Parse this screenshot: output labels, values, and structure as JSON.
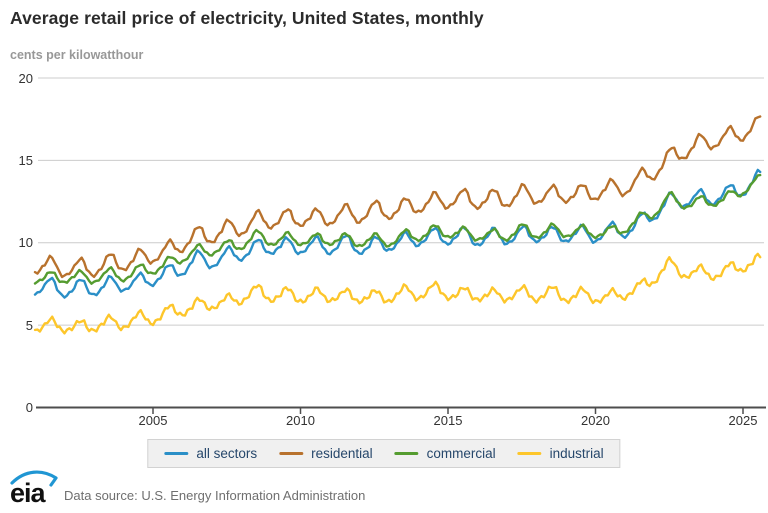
{
  "header": {
    "title": "Average retail price of electricity, United States, monthly",
    "subtitle": "cents per kilowatthour"
  },
  "footer": {
    "logo_text": "eia",
    "source": "Data source: U.S. Energy Information Administration"
  },
  "colors": {
    "title_text": "#2b2b2b",
    "subtitle_text": "#989898",
    "axis": "#4d4d4d",
    "grid": "#cccccc",
    "tick_label": "#333333",
    "legend_text": "#26476b",
    "legend_bg": "#f0f0f0",
    "source_text": "#6f6f6f",
    "eia_blue": "#2096d3"
  },
  "chart_data": {
    "type": "line",
    "title": "Average retail price of electricity, United States, monthly",
    "ylabel": "cents per kilowatthour",
    "frequency": "monthly",
    "x_start": "2001-01",
    "x_end": "2025-08",
    "ylim": [
      0,
      20
    ],
    "y_ticks": [
      0,
      5,
      10,
      15,
      20
    ],
    "x_ticks": [
      2005,
      2010,
      2015,
      2020,
      2025
    ],
    "grid": "horizontal",
    "legend_position": "bottom",
    "annual_start_year": 2001,
    "seasonal_offsets": [
      -0.9,
      -0.8,
      -0.55,
      -0.25,
      0.1,
      0.65,
      1.0,
      1.0,
      0.65,
      -0.05,
      -0.55,
      -0.85
    ],
    "series": [
      {
        "id": "all-sectors",
        "name": "all sectors",
        "color": "#2a8fc7",
        "seasonal_amplitude": 0.5,
        "noise_scale": 0.08,
        "start_value": 6.9,
        "end_value": 14.3,
        "annual_averages": [
          7.3,
          7.2,
          7.4,
          7.6,
          8.1,
          8.9,
          9.1,
          9.7,
          9.8,
          9.8,
          9.9,
          9.8,
          10.1,
          10.4,
          10.4,
          10.3,
          10.5,
          10.5,
          10.5,
          10.6,
          11.1,
          12.5,
          12.7,
          12.9,
          13.8
        ]
      },
      {
        "id": "residential",
        "name": "residential",
        "color": "#b8722d",
        "seasonal_amplitude": 0.55,
        "noise_scale": 0.09,
        "start_value": 7.9,
        "end_value": 17.6,
        "annual_averages": [
          8.6,
          8.4,
          8.7,
          9.0,
          9.5,
          10.4,
          10.7,
          11.3,
          11.5,
          11.5,
          11.7,
          11.9,
          12.1,
          12.5,
          12.7,
          12.6,
          12.9,
          12.9,
          13.0,
          13.2,
          13.7,
          15.1,
          16.0,
          16.4,
          17.1
        ]
      },
      {
        "id": "commercial",
        "name": "commercial",
        "color": "#559c30",
        "seasonal_amplitude": 0.38,
        "noise_scale": 0.07,
        "start_value": 7.4,
        "end_value": 14.1,
        "annual_averages": [
          7.9,
          7.9,
          8.0,
          8.2,
          8.7,
          9.5,
          9.7,
          10.3,
          10.2,
          10.2,
          10.2,
          10.1,
          10.3,
          10.7,
          10.6,
          10.4,
          10.7,
          10.7,
          10.7,
          10.6,
          11.3,
          12.6,
          12.4,
          12.7,
          13.7
        ]
      },
      {
        "id": "industrial",
        "name": "industrial",
        "color": "#fdc62b",
        "seasonal_amplitude": 0.4,
        "noise_scale": 0.13,
        "start_value": 5.0,
        "end_value": 9.2,
        "annual_averages": [
          5.0,
          4.9,
          5.1,
          5.3,
          5.7,
          6.2,
          6.4,
          7.0,
          6.8,
          6.8,
          6.8,
          6.7,
          6.9,
          7.1,
          6.9,
          6.8,
          6.9,
          6.9,
          6.8,
          6.7,
          7.2,
          8.6,
          8.1,
          8.3,
          8.9
        ]
      }
    ]
  }
}
